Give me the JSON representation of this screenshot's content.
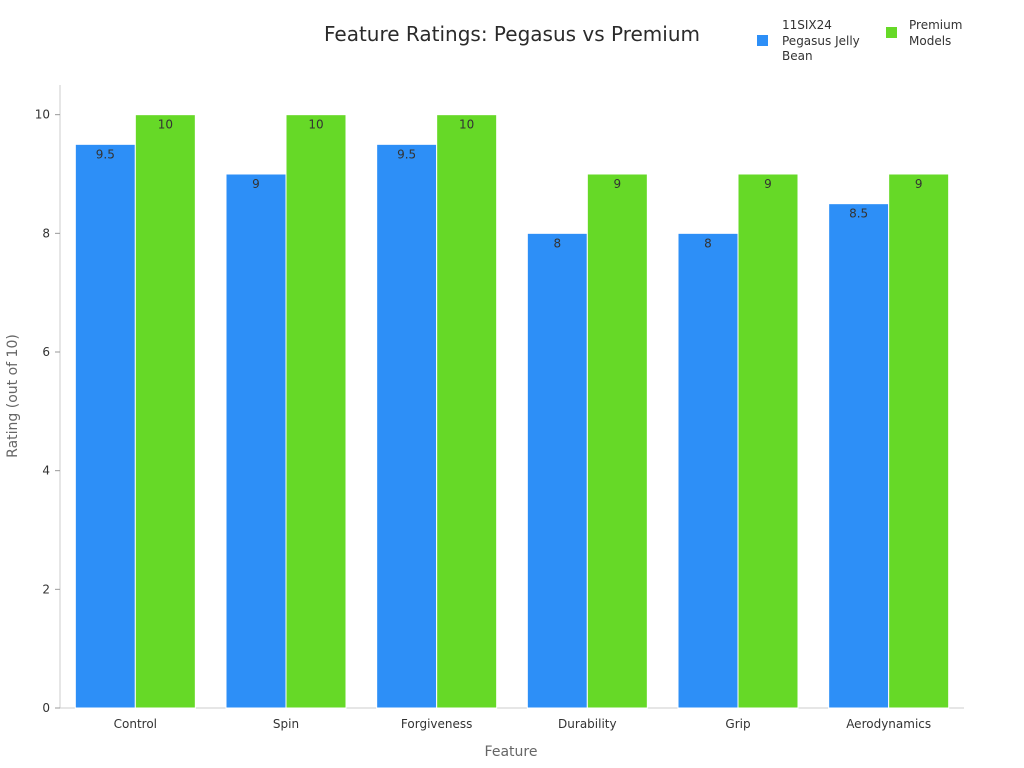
{
  "chart_data": {
    "type": "bar",
    "title": "Feature Ratings: Pegasus vs Premium",
    "xlabel": "Feature",
    "ylabel": "Rating (out of 10)",
    "categories": [
      "Control",
      "Spin",
      "Forgiveness",
      "Durability",
      "Grip",
      "Aerodynamics"
    ],
    "series": [
      {
        "name": "11SIX24 Pegasus Jelly Bean",
        "color": "#2d8ff7",
        "values": [
          9.5,
          9,
          9.5,
          8,
          8,
          8.5
        ]
      },
      {
        "name": "Premium Models",
        "color": "#66d927",
        "values": [
          10,
          10,
          10,
          9,
          9,
          9
        ]
      }
    ],
    "ylim": [
      0,
      10.5
    ],
    "yticks": [
      0,
      2,
      4,
      6,
      8,
      10
    ],
    "legend": "top-right",
    "grid": false
  }
}
